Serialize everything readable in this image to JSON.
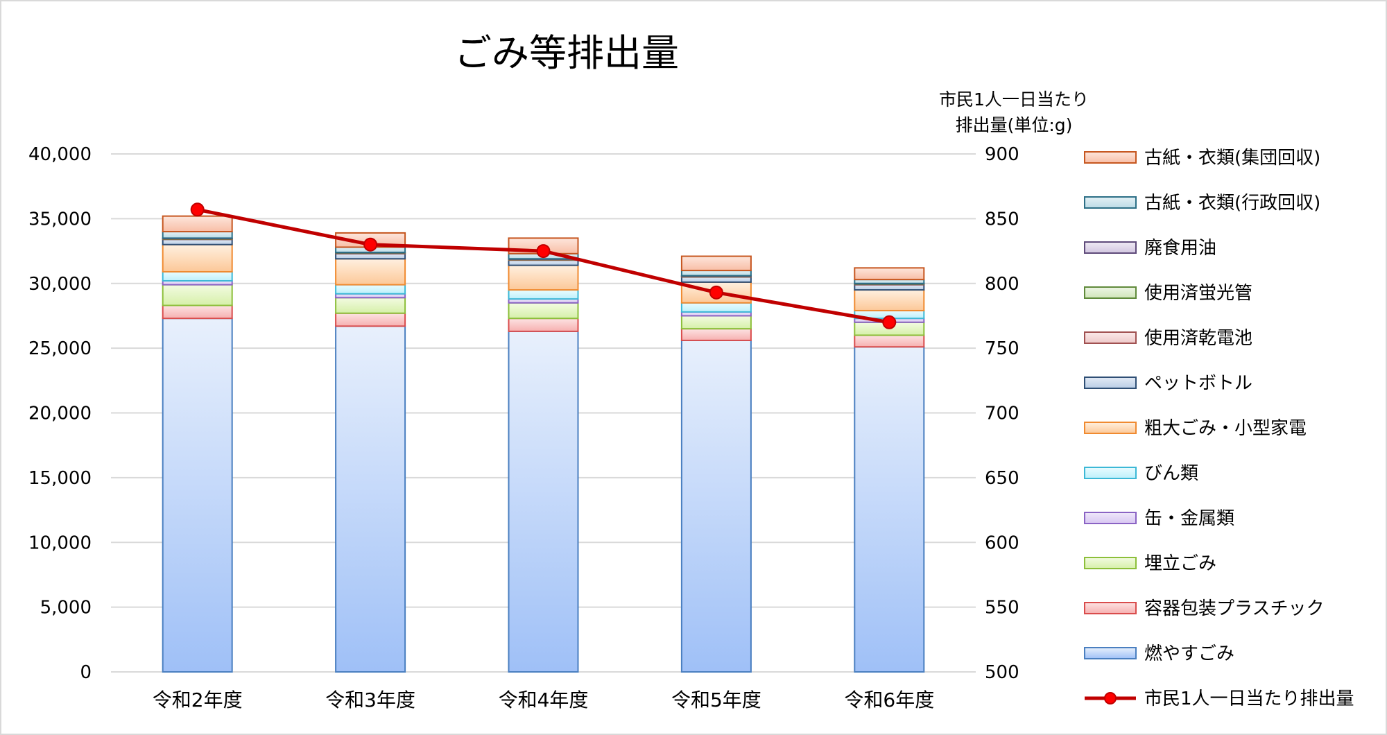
{
  "chart_data": {
    "type": "bar",
    "title": "ごみ等排出量",
    "categories": [
      "令和2年度",
      "令和3年度",
      "令和4年度",
      "令和5年度",
      "令和6年度"
    ],
    "ylim": [
      0,
      40000
    ],
    "y_ticks": [
      "0",
      "5,000",
      "10,000",
      "15,000",
      "20,000",
      "25,000",
      "30,000",
      "35,000",
      "40,000"
    ],
    "y2label": [
      "市民1人一日当たり",
      "排出量(単位:g)"
    ],
    "y2lim": [
      500,
      900
    ],
    "y2_ticks": [
      "500",
      "550",
      "600",
      "650",
      "700",
      "750",
      "800",
      "850",
      "900"
    ],
    "grid": true,
    "legend_position": "right",
    "series": [
      {
        "name": "燃やすごみ",
        "values": [
          27300,
          26700,
          26300,
          25600,
          25100
        ],
        "color_top": "#e8f0fc",
        "color_bottom": "#9fc0f7",
        "stroke": "#4a7fc0"
      },
      {
        "name": "容器包装プラスチック",
        "values": [
          1000,
          1000,
          1000,
          900,
          900
        ],
        "color_top": "#fde3e3",
        "color_bottom": "#f6b0b0",
        "stroke": "#d94c4c"
      },
      {
        "name": "埋立ごみ",
        "values": [
          1600,
          1200,
          1200,
          1000,
          1000
        ],
        "color_top": "#f3fbe2",
        "color_bottom": "#d6f0a9",
        "stroke": "#8cbf3a"
      },
      {
        "name": "缶・金属類",
        "values": [
          300,
          300,
          300,
          300,
          300
        ],
        "color_top": "#efe8fa",
        "color_bottom": "#d8c6f2",
        "stroke": "#8a63c4"
      },
      {
        "name": "びん類",
        "values": [
          700,
          700,
          700,
          700,
          600
        ],
        "color_top": "#eafcff",
        "color_bottom": "#bdf0fb",
        "stroke": "#3cb8d6"
      },
      {
        "name": "粗大ごみ・小型家電",
        "values": [
          2100,
          2000,
          1900,
          1600,
          1600
        ],
        "color_top": "#fff0e0",
        "color_bottom": "#fcc898",
        "stroke": "#f08a30"
      },
      {
        "name": "ペットボトル",
        "values": [
          400,
          400,
          400,
          400,
          400
        ],
        "color_top": "#e3ebf5",
        "color_bottom": "#b9cde6",
        "stroke": "#2f4f75"
      },
      {
        "name": "使用済乾電池",
        "values": [
          40,
          40,
          40,
          40,
          40
        ],
        "color_top": "#fbeaea",
        "color_bottom": "#eec9c9",
        "stroke": "#a05050"
      },
      {
        "name": "使用済蛍光管",
        "values": [
          30,
          30,
          30,
          30,
          30
        ],
        "color_top": "#eef6e6",
        "color_bottom": "#cfe6b8",
        "stroke": "#5f8a3a"
      },
      {
        "name": "廃食用油",
        "values": [
          30,
          30,
          30,
          30,
          30
        ],
        "color_top": "#efeaf4",
        "color_bottom": "#d2c6e0",
        "stroke": "#5e4a7a"
      },
      {
        "name": "古紙・衣類(行政回収)",
        "values": [
          500,
          400,
          400,
          400,
          300
        ],
        "color_top": "#e4f1f5",
        "color_bottom": "#bcdbe6",
        "stroke": "#2c6f86"
      },
      {
        "name": "古紙・衣類(集団回収)",
        "values": [
          1200,
          1100,
          1200,
          1100,
          900
        ],
        "color_top": "#fde6dc",
        "color_bottom": "#f8bea6",
        "stroke": "#c6561f"
      }
    ],
    "line_series": {
      "name": "市民1人一日当たり排出量",
      "axis": "right",
      "values": [
        857,
        830,
        825,
        793,
        770
      ],
      "color": "#c00000",
      "marker_color": "#ff0000"
    }
  }
}
